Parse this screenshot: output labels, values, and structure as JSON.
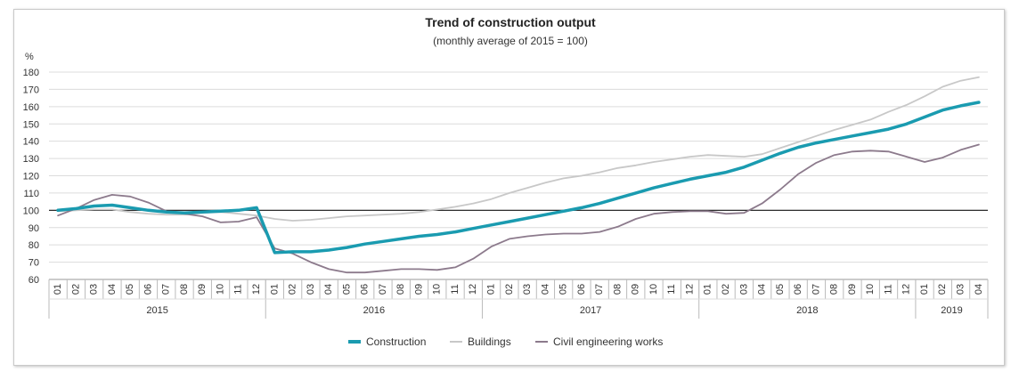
{
  "chart_data": {
    "type": "line",
    "title": "Trend of construction output",
    "subtitle": "(monthly average of 2015 = 100)",
    "ylabel": "%",
    "ylim": [
      60,
      180
    ],
    "yticks": [
      60,
      70,
      80,
      90,
      100,
      110,
      120,
      130,
      140,
      150,
      160,
      170,
      180
    ],
    "reference_line": 100,
    "grid": true,
    "legend_position": "bottom",
    "years": [
      {
        "label": "2015",
        "months": 12
      },
      {
        "label": "2016",
        "months": 12
      },
      {
        "label": "2017",
        "months": 12
      },
      {
        "label": "2018",
        "months": 12
      },
      {
        "label": "2019",
        "months": 4
      }
    ],
    "month_labels": [
      "01",
      "02",
      "03",
      "04",
      "05",
      "06",
      "07",
      "08",
      "09",
      "10",
      "11",
      "12"
    ],
    "series": [
      {
        "name": "Construction",
        "color": "#1a9bb0",
        "width": 3.5,
        "values": [
          100,
          101,
          102.5,
          103,
          101.5,
          100,
          99,
          98.5,
          99,
          99.5,
          100,
          101.5,
          75.5,
          76,
          76,
          77,
          78.5,
          80.5,
          82,
          83.5,
          85,
          86,
          87.5,
          89.5,
          91.5,
          93.5,
          95.5,
          97.5,
          99.5,
          101.5,
          104,
          107,
          110,
          113,
          115.5,
          118,
          120,
          122,
          125,
          129,
          133,
          136.5,
          139,
          141,
          143,
          145,
          147,
          150,
          154,
          158,
          160.5,
          162.5
        ]
      },
      {
        "name": "Buildings",
        "color": "#c8c8c8",
        "width": 1.8,
        "values": [
          99.5,
          100,
          100.5,
          100.5,
          99,
          98,
          97.5,
          97.5,
          98.5,
          99,
          98,
          97,
          95,
          94,
          94.5,
          95.5,
          96.5,
          97,
          97.5,
          98,
          99,
          100.5,
          102,
          104,
          106.5,
          110,
          113,
          116,
          118.5,
          120,
          122,
          124.5,
          126,
          128,
          129.5,
          131,
          132,
          131.5,
          131,
          132.5,
          136,
          139.5,
          143,
          146.5,
          149.5,
          152.5,
          157,
          161,
          166,
          171.5,
          175,
          177
        ]
      },
      {
        "name": "Civil engineering works",
        "color": "#8c7a8c",
        "width": 1.8,
        "values": [
          97,
          101,
          106,
          109,
          108,
          104.5,
          99.5,
          98,
          96.5,
          93,
          93.5,
          96,
          78,
          75,
          70,
          66,
          64,
          64,
          65,
          66,
          66,
          65.5,
          67,
          72,
          79,
          83.5,
          85,
          86,
          86.5,
          86.5,
          87.5,
          90.5,
          95,
          98,
          99,
          99.5,
          99.5,
          98,
          98.5,
          104,
          112,
          121,
          127.5,
          132,
          134,
          134.5,
          134,
          131,
          128,
          130.5,
          135,
          138
        ]
      }
    ]
  }
}
